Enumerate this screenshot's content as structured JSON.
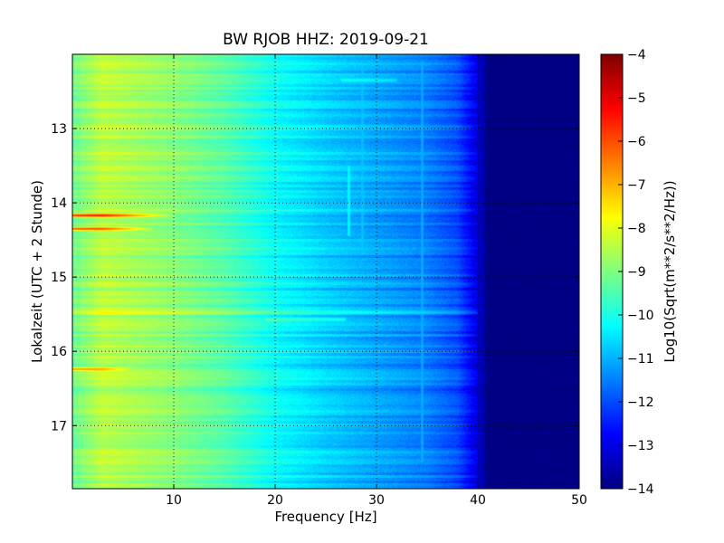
{
  "chart_data": {
    "type": "heatmap",
    "title": "BW RJOB HHZ: 2019-09-21",
    "xlabel": "Frequency [Hz]",
    "ylabel": "Lokalzeit (UTC + 2 Stunde)",
    "xlim": [
      0,
      50
    ],
    "ylim": [
      12.0,
      17.85
    ],
    "y_inverted": true,
    "x_ticks": [
      10,
      20,
      30,
      40,
      50
    ],
    "x_tick_labels": [
      "10",
      "20",
      "30",
      "40",
      "50"
    ],
    "y_ticks": [
      13,
      14,
      15,
      16,
      17
    ],
    "y_tick_labels": [
      "13",
      "14",
      "15",
      "16",
      "17"
    ],
    "grid": true,
    "grid_style": "dotted black at tick positions",
    "colormap": "jet",
    "colorbar": {
      "label": "Log10(Sqrt(m**2/s**2/Hz))",
      "min": -14,
      "max": -4,
      "ticks": [
        -4,
        -5,
        -6,
        -7,
        -8,
        -9,
        -10,
        -11,
        -12,
        -13,
        -14
      ],
      "tick_labels": [
        "−4",
        "−5",
        "−6",
        "−7",
        "−8",
        "−9",
        "−10",
        "−11",
        "−12",
        "−13",
        "−14"
      ]
    },
    "spectral_profile": {
      "frequency_hz": [
        0,
        3,
        10,
        15,
        20,
        25,
        30,
        35,
        38,
        40,
        41,
        50
      ],
      "level": [
        -9.2,
        -8.4,
        -8.9,
        -9.4,
        -10.2,
        -10.7,
        -11.1,
        -11.5,
        -12.0,
        -13.1,
        -14.0,
        -14.0
      ]
    },
    "features": [
      {
        "kind": "time-band",
        "time": 14.17,
        "f_to": 10,
        "peak_level": -5.2
      },
      {
        "kind": "time-band",
        "time": 14.35,
        "f_to": 8,
        "peak_level": -5.8
      },
      {
        "kind": "time-band",
        "time": 16.24,
        "f_to": 6,
        "peak_level": -6.6
      },
      {
        "kind": "time-band",
        "time": 15.57,
        "f_from": 19,
        "f_to": 27,
        "peak_level": -9.2
      },
      {
        "kind": "time-band",
        "time": 15.5,
        "f_from": 20,
        "f_to": 43,
        "peak_level": -12.0
      },
      {
        "kind": "time-band",
        "time": 14.85,
        "f_from": 15,
        "f_to": 42,
        "peak_level": -11.5
      },
      {
        "kind": "time-band",
        "time": 15.48,
        "f_from": 0,
        "f_to": 40,
        "peak_level": -8.3
      },
      {
        "kind": "time-band",
        "time": 12.35,
        "f_from": 26.5,
        "f_to": 32,
        "peak_level": -10.0
      },
      {
        "kind": "line",
        "freq": 27.3,
        "t_from": 13.5,
        "t_to": 14.45,
        "peak_level": -10.2
      },
      {
        "kind": "line",
        "freq": 28.6,
        "t_from": 12.1,
        "t_to": 14.7,
        "peak_level": -10.8
      },
      {
        "kind": "line",
        "freq": 34.5,
        "t_from": 12.1,
        "t_to": 17.5,
        "peak_level": -11.0
      }
    ]
  }
}
